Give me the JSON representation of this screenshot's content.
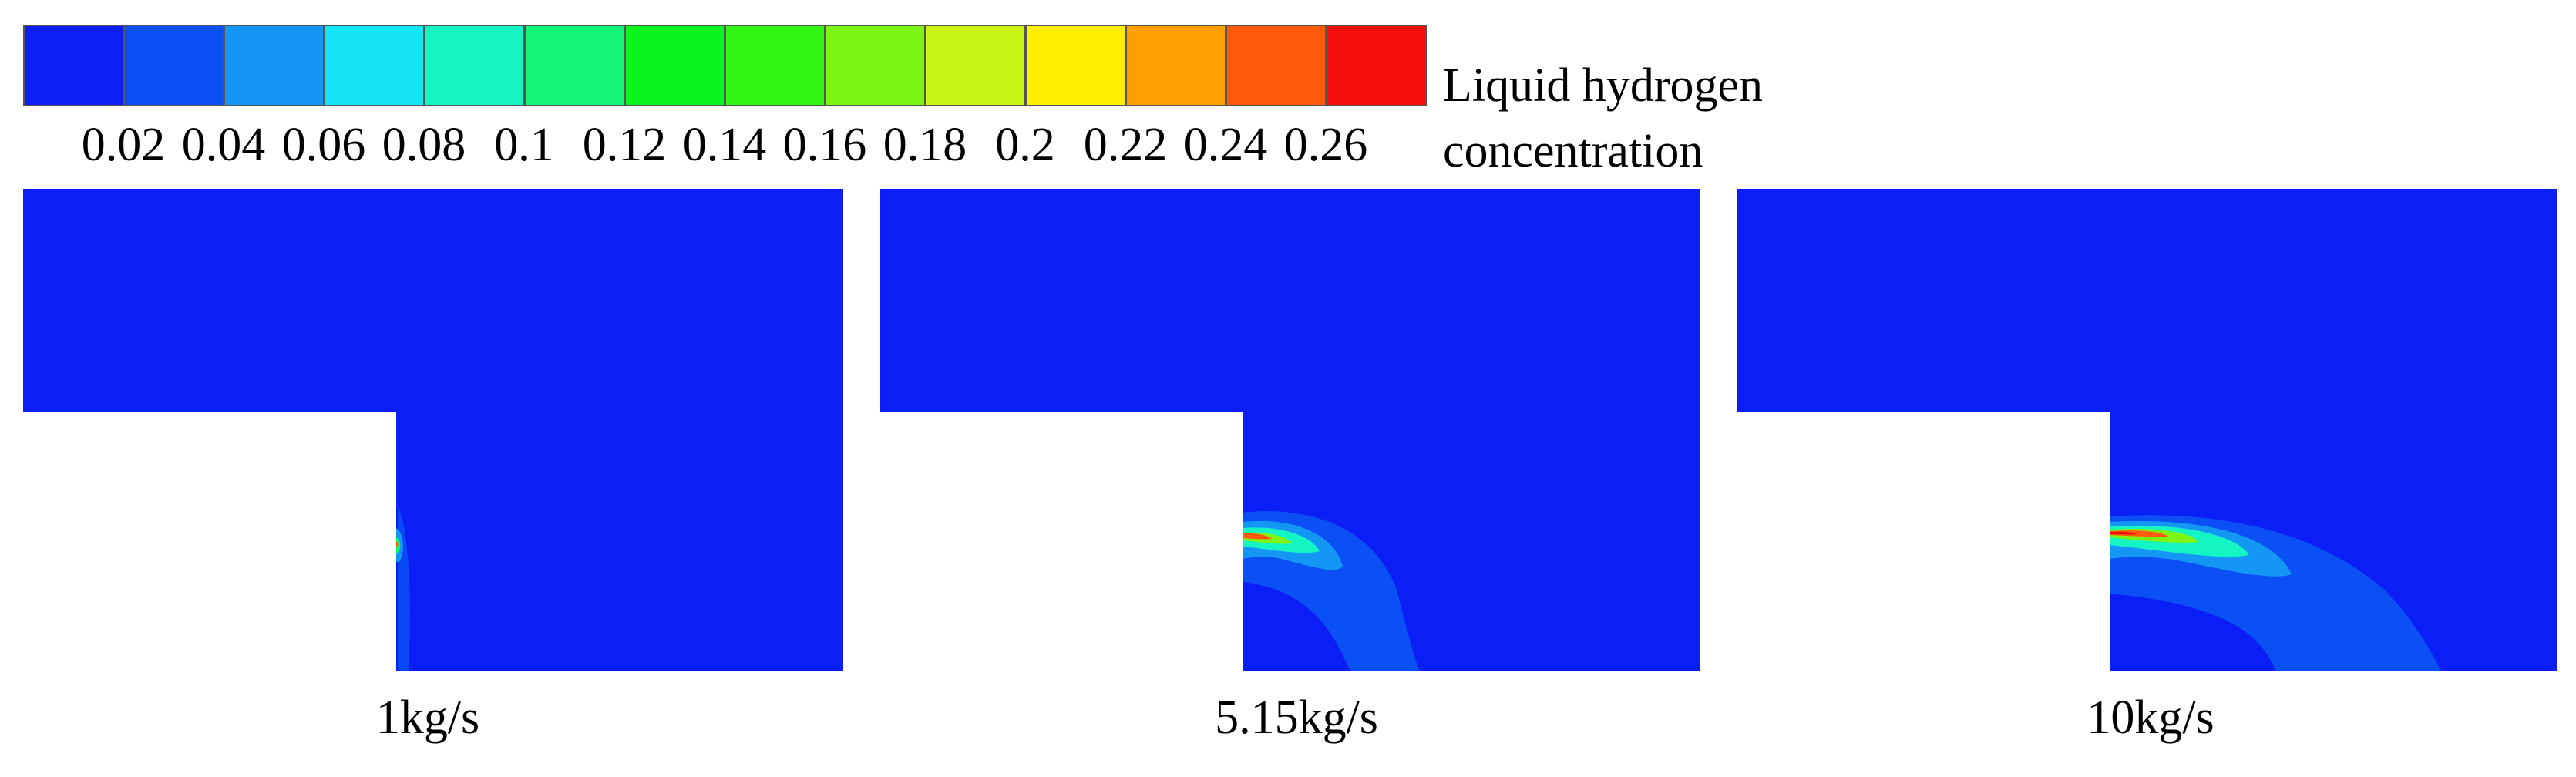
{
  "legend": {
    "title_line1": "Liquid hydrogen",
    "title_line2": "concentration",
    "ticks": [
      "0.02",
      "0.04",
      "0.06",
      "0.08",
      "0.1",
      "0.12",
      "0.14",
      "0.16",
      "0.18",
      "0.2",
      "0.22",
      "0.24",
      "0.26"
    ],
    "colors": [
      "#0a1ef5",
      "#0a50f5",
      "#1496f5",
      "#14e6f5",
      "#14f5c3",
      "#14f578",
      "#0af51e",
      "#32f514",
      "#7df514",
      "#c8f514",
      "#fff000",
      "#ffa000",
      "#ff5a0a",
      "#f50f0f"
    ]
  },
  "panels": [
    {
      "caption": "1kg/s"
    },
    {
      "caption": "5.15kg/s"
    },
    {
      "caption": "10kg/s"
    }
  ],
  "colors": {
    "background_field": "#0a1ef5"
  }
}
